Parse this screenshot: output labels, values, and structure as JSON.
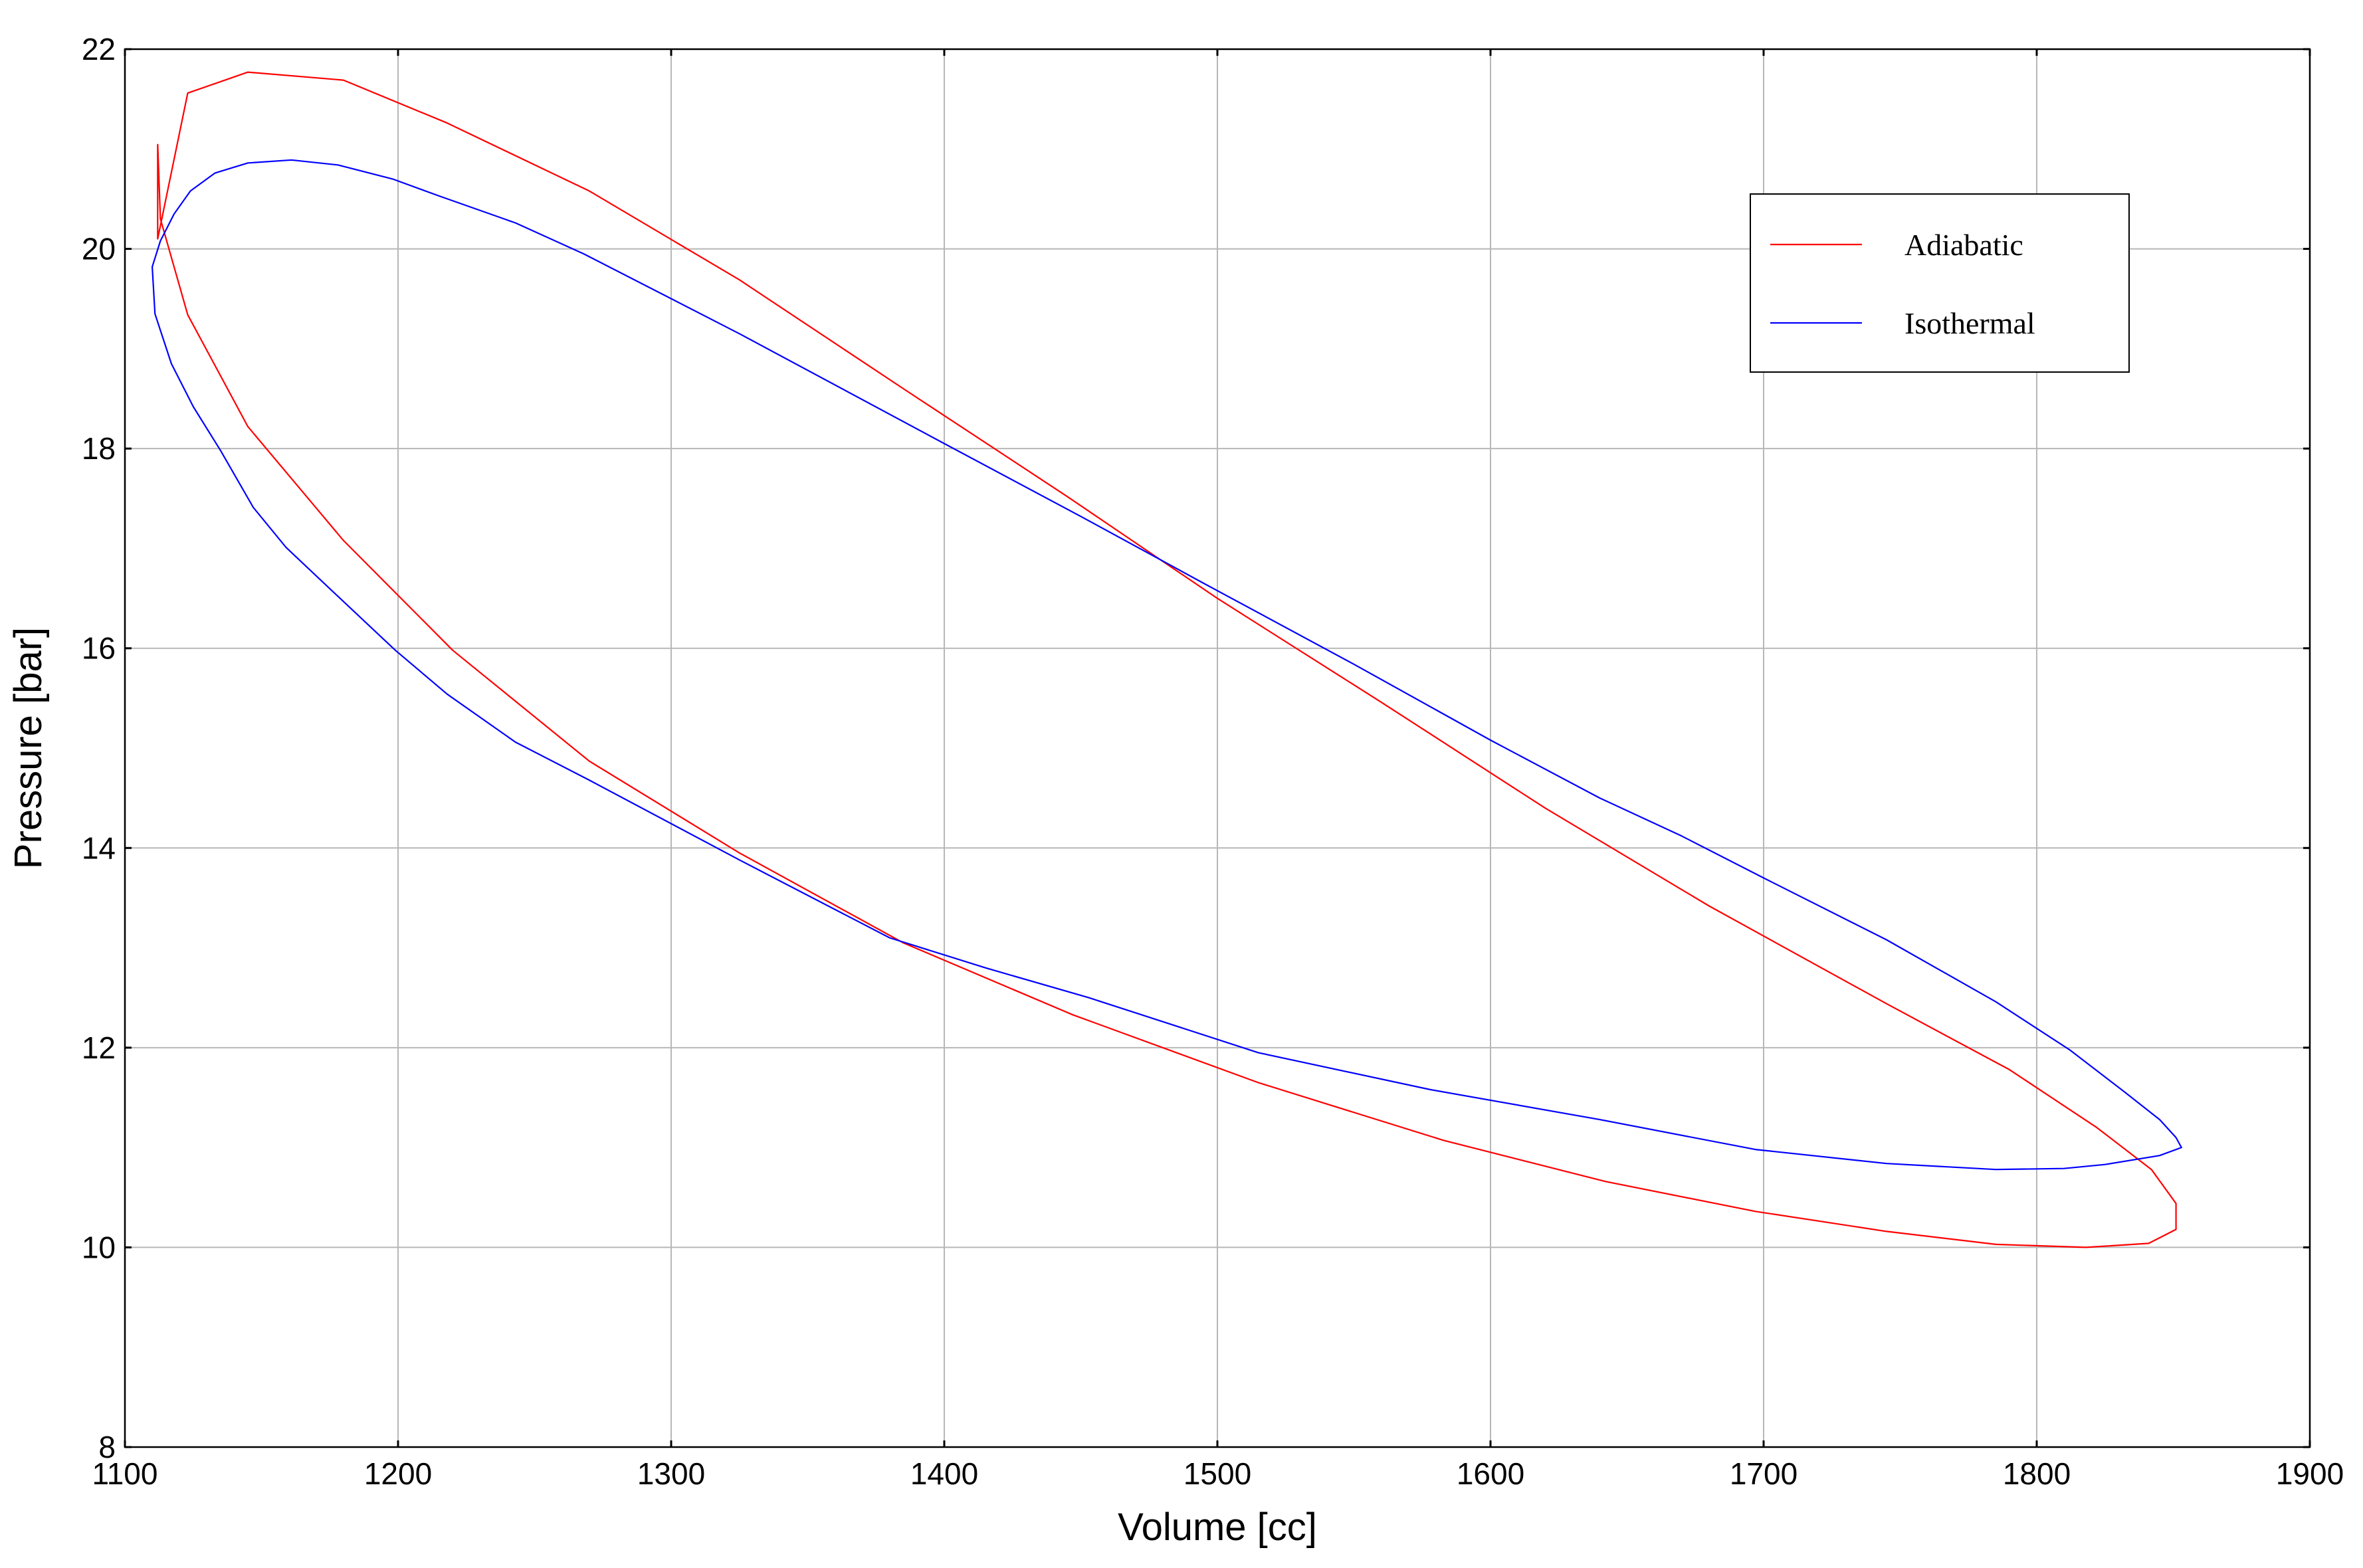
{
  "chart_data": {
    "type": "line",
    "title": "",
    "xlabel": "Volume [cc]",
    "ylabel": "Pressure [bar]",
    "xlim": [
      1100,
      1900
    ],
    "ylim": [
      8,
      22
    ],
    "xticks": [
      1100,
      1200,
      1300,
      1400,
      1500,
      1600,
      1700,
      1800,
      1900
    ],
    "yticks": [
      8,
      10,
      12,
      14,
      16,
      18,
      20,
      22
    ],
    "grid": true,
    "legend_position": "top-right",
    "colors": {
      "adiabatic": "#ff0000",
      "isothermal": "#0000ff",
      "grid": "#b7b7b7"
    },
    "series": [
      {
        "name": "Adiabatic",
        "color": "#ff0000",
        "x": [
          1112,
          1112,
          1123,
          1145,
          1180,
          1218,
          1270,
          1325,
          1385,
          1445,
          1500,
          1560,
          1620,
          1680,
          1745,
          1790,
          1822,
          1842,
          1851,
          1851,
          1841,
          1818,
          1785,
          1745,
          1697,
          1642,
          1583,
          1515,
          1447,
          1385,
          1325,
          1270,
          1220,
          1180,
          1145,
          1123,
          1113,
          1112
        ],
        "y": [
          21.05,
          20.1,
          21.56,
          21.77,
          21.69,
          21.26,
          20.58,
          19.69,
          18.6,
          17.52,
          16.5,
          15.46,
          14.4,
          13.42,
          12.44,
          11.78,
          11.2,
          10.78,
          10.44,
          10.18,
          10.04,
          10.0,
          10.03,
          10.16,
          10.36,
          10.66,
          11.07,
          11.65,
          12.33,
          13.05,
          13.95,
          14.87,
          15.98,
          17.08,
          18.22,
          19.34,
          20.3,
          21.05
        ]
      },
      {
        "name": "Isothermal",
        "color": "#0000ff",
        "x": [
          1161,
          1178,
          1198,
          1215,
          1243,
          1268,
          1325,
          1400,
          1450,
          1495,
          1550,
          1600,
          1640,
          1670,
          1700,
          1745,
          1785,
          1812,
          1832,
          1845,
          1851,
          1853,
          1845,
          1825,
          1810,
          1785,
          1745,
          1697,
          1640,
          1578,
          1515,
          1453,
          1415,
          1380,
          1325,
          1270,
          1243,
          1218,
          1199,
          1178,
          1159,
          1147,
          1135,
          1125,
          1117,
          1111,
          1110,
          1113,
          1118,
          1124,
          1133,
          1145,
          1161
        ],
        "y": [
          20.89,
          20.84,
          20.7,
          20.53,
          20.26,
          19.95,
          19.15,
          18.05,
          17.32,
          16.65,
          15.84,
          15.08,
          14.5,
          14.12,
          13.7,
          13.08,
          12.46,
          11.98,
          11.56,
          11.28,
          11.1,
          11.0,
          10.92,
          10.83,
          10.79,
          10.78,
          10.84,
          10.98,
          11.28,
          11.58,
          11.95,
          12.5,
          12.8,
          13.1,
          13.88,
          14.68,
          15.06,
          15.54,
          15.98,
          16.52,
          17.01,
          17.41,
          17.98,
          18.42,
          18.85,
          19.35,
          19.82,
          20.08,
          20.35,
          20.58,
          20.76,
          20.86,
          20.89
        ]
      }
    ]
  }
}
